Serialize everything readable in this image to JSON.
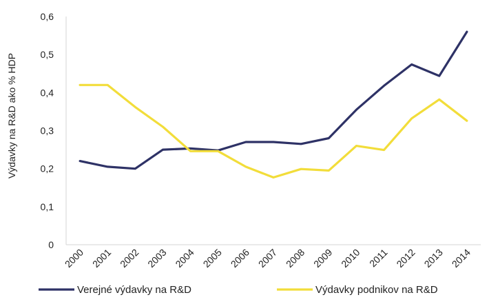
{
  "chart_data": {
    "type": "line",
    "title": "",
    "xlabel": "",
    "ylabel": "Výdavky na R&D ako % HDP",
    "x": [
      "2000",
      "2001",
      "2002",
      "2003",
      "2004",
      "2005",
      "2006",
      "2007",
      "2008",
      "2009",
      "2010",
      "2011",
      "2012",
      "2013",
      "2014"
    ],
    "ylim": [
      0,
      0.6
    ],
    "yticks": [
      "0",
      "0,1",
      "0,2",
      "0,3",
      "0,4",
      "0,5",
      "0,6"
    ],
    "grid": false,
    "legend": "bottom",
    "series": [
      {
        "name": "Verejné výdavky na R&D",
        "color": "#2e3266",
        "values": [
          0.22,
          0.205,
          0.2,
          0.25,
          0.253,
          0.248,
          0.27,
          0.27,
          0.265,
          0.28,
          0.355,
          0.418,
          0.474,
          0.444,
          0.56
        ]
      },
      {
        "name": "Výdavky podnikov na R&D",
        "color": "#f2dd3a",
        "values": [
          0.42,
          0.42,
          0.362,
          0.31,
          0.246,
          0.246,
          0.205,
          0.177,
          0.199,
          0.195,
          0.26,
          0.249,
          0.332,
          0.382,
          0.326
        ]
      }
    ]
  }
}
